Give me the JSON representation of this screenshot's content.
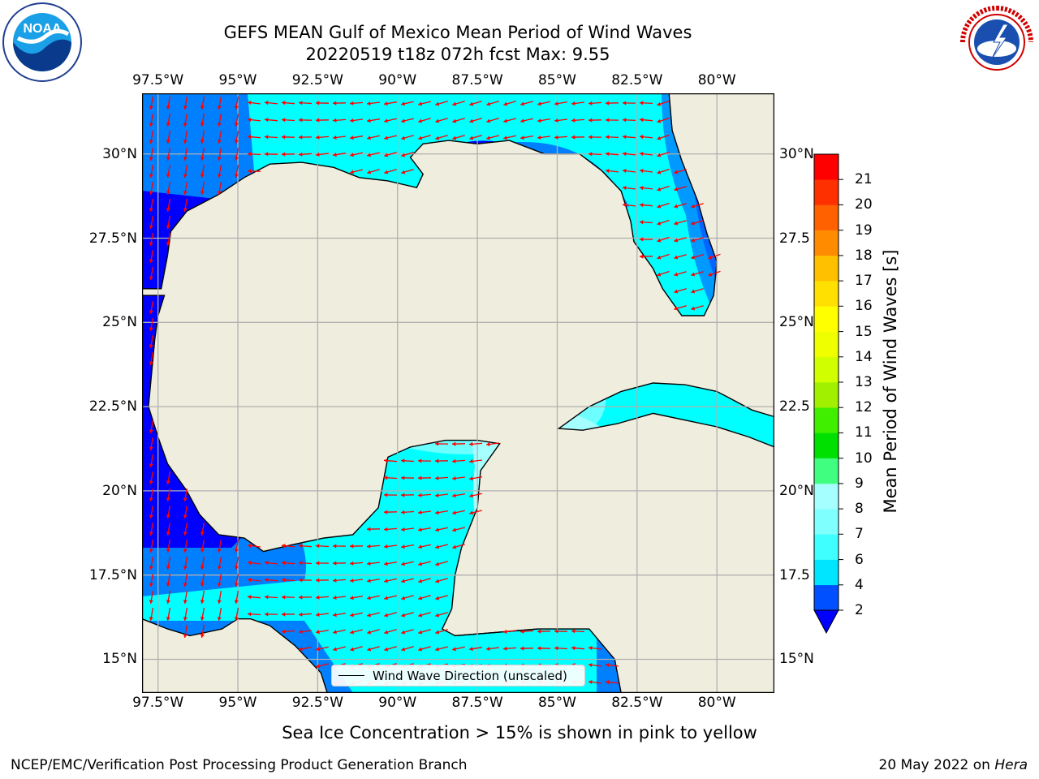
{
  "header": {
    "title": "GEFS MEAN Gulf of Mexico Mean Period of Wind Waves",
    "subtitle_line": "20220519 t18z 072h fcst   Max: 9.55"
  },
  "logos": {
    "left": {
      "icon": "noaa-logo",
      "text": "NOAA",
      "ring_text": "NATIONAL OCEANIC AND ATMOSPHERIC ADMINISTRATION · U.S. DEPARTMENT OF COMMERCE"
    },
    "right": {
      "icon": "nws-logo",
      "ring_text": "NATIONAL WEATHER SERVICE"
    }
  },
  "map": {
    "lon_ticks": [
      "97.5°W",
      "95°W",
      "92.5°W",
      "90°W",
      "87.5°W",
      "85°W",
      "82.5°W",
      "80°W"
    ],
    "lat_ticks_left": [
      "30°N",
      "27.5°N",
      "25°N",
      "22.5°N",
      "20°N",
      "17.5°N",
      "15°N"
    ],
    "lat_ticks_right": [
      "30°N",
      "27.5",
      "25°N",
      "22.5",
      "20°N",
      "17.5",
      "15°N"
    ],
    "extent": {
      "lon_min": -98.0,
      "lon_max": -78.2,
      "lat_min": 14.0,
      "lat_max": 31.8
    },
    "grid": true,
    "legend_label": "Wind Wave Direction (unscaled)",
    "colors": {
      "land": "#efedde",
      "coast": "#000000",
      "grid": "#b0b0b0",
      "arrow": "#ff0000"
    }
  },
  "colorbar": {
    "label": "Mean Period of Wind Waves [s]",
    "ticks": [
      "2",
      "4",
      "6",
      "7",
      "8",
      "9",
      "10",
      "11",
      "12",
      "13",
      "14",
      "15",
      "16",
      "17",
      "18",
      "19",
      "20",
      "21"
    ],
    "colors": [
      "#0050ff",
      "#00e5ff",
      "#40ffff",
      "#80ffff",
      "#a6ffff",
      "#40ff80",
      "#00e000",
      "#40ee00",
      "#a0f000",
      "#d0ff00",
      "#f0ff00",
      "#ffff00",
      "#ffe000",
      "#ffc000",
      "#ff8c00",
      "#ff6000",
      "#ff3000",
      "#ff0000"
    ],
    "under_color": "#0000ff"
  },
  "footer": {
    "note": "Sea Ice Concentration > 15% is shown in pink to yellow",
    "left": "NCEP/EMC/Verification Post Processing Product Generation Branch",
    "right_date": "20 May 2022 on ",
    "right_machine": "Hera"
  }
}
